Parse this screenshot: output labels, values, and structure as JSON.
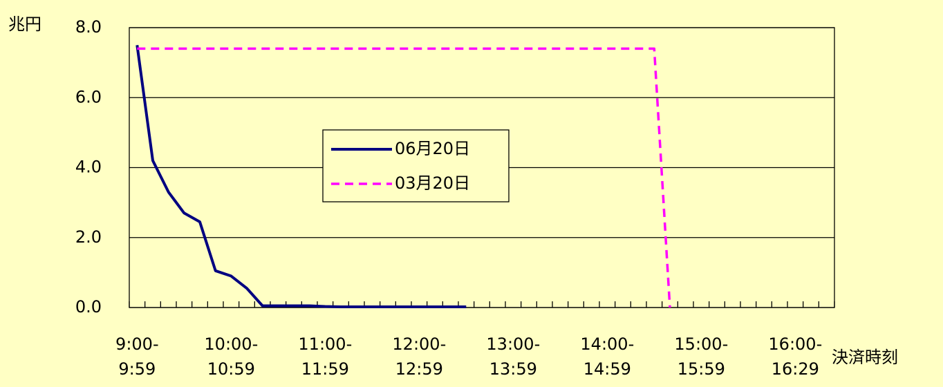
{
  "chart_data": {
    "type": "line",
    "ylabel": "兆円",
    "xlabel": "決済時刻",
    "categories": [
      "9:00-\n9:59",
      null,
      null,
      null,
      null,
      null,
      "10:00-\n10:59",
      null,
      null,
      null,
      null,
      null,
      "11:00-\n11:59",
      null,
      null,
      null,
      null,
      null,
      "12:00-\n12:59",
      null,
      null,
      null,
      null,
      null,
      "13:00-\n13:59",
      null,
      null,
      null,
      null,
      null,
      "14:00-\n14:59",
      null,
      null,
      null,
      null,
      null,
      "15:00-\n15:59",
      null,
      null,
      null,
      null,
      null,
      "16:00-\n16:29",
      null,
      null
    ],
    "series": [
      {
        "name": "06月20日",
        "color": "#000080",
        "dash": false,
        "values": [
          7.5,
          4.2,
          3.3,
          2.7,
          2.45,
          1.05,
          0.9,
          0.55,
          0.05,
          0.05,
          0.05,
          0.05,
          0.03,
          0.02,
          0.02,
          0.02,
          0.02,
          0.02,
          0.02,
          0.02,
          0.02,
          0.02,
          null,
          null,
          null,
          null,
          null,
          null,
          null,
          null,
          null,
          null,
          null,
          null,
          null,
          null,
          null,
          null,
          null,
          null,
          null,
          null,
          null,
          null,
          null
        ]
      },
      {
        "name": "03月20日",
        "color": "#ff00ff",
        "dash": true,
        "values": [
          7.4,
          7.4,
          7.4,
          7.4,
          7.4,
          7.4,
          7.4,
          7.4,
          7.4,
          7.4,
          7.4,
          7.4,
          7.4,
          7.4,
          7.4,
          7.4,
          7.4,
          7.4,
          7.4,
          7.4,
          7.4,
          7.4,
          7.4,
          7.4,
          7.4,
          7.4,
          7.4,
          7.4,
          7.4,
          7.4,
          7.4,
          7.4,
          7.4,
          7.4,
          0,
          null,
          null,
          null,
          null,
          null,
          null,
          null,
          null,
          null,
          null
        ]
      }
    ],
    "ylim": [
      0,
      8
    ],
    "yticks": [
      {
        "value": 0,
        "label": "0.0"
      },
      {
        "value": 2,
        "label": "2.0"
      },
      {
        "value": 4,
        "label": "4.0"
      },
      {
        "value": 6,
        "label": "6.0"
      },
      {
        "value": 8,
        "label": "8.0"
      }
    ],
    "grid": true,
    "background": "#ffffc4"
  }
}
